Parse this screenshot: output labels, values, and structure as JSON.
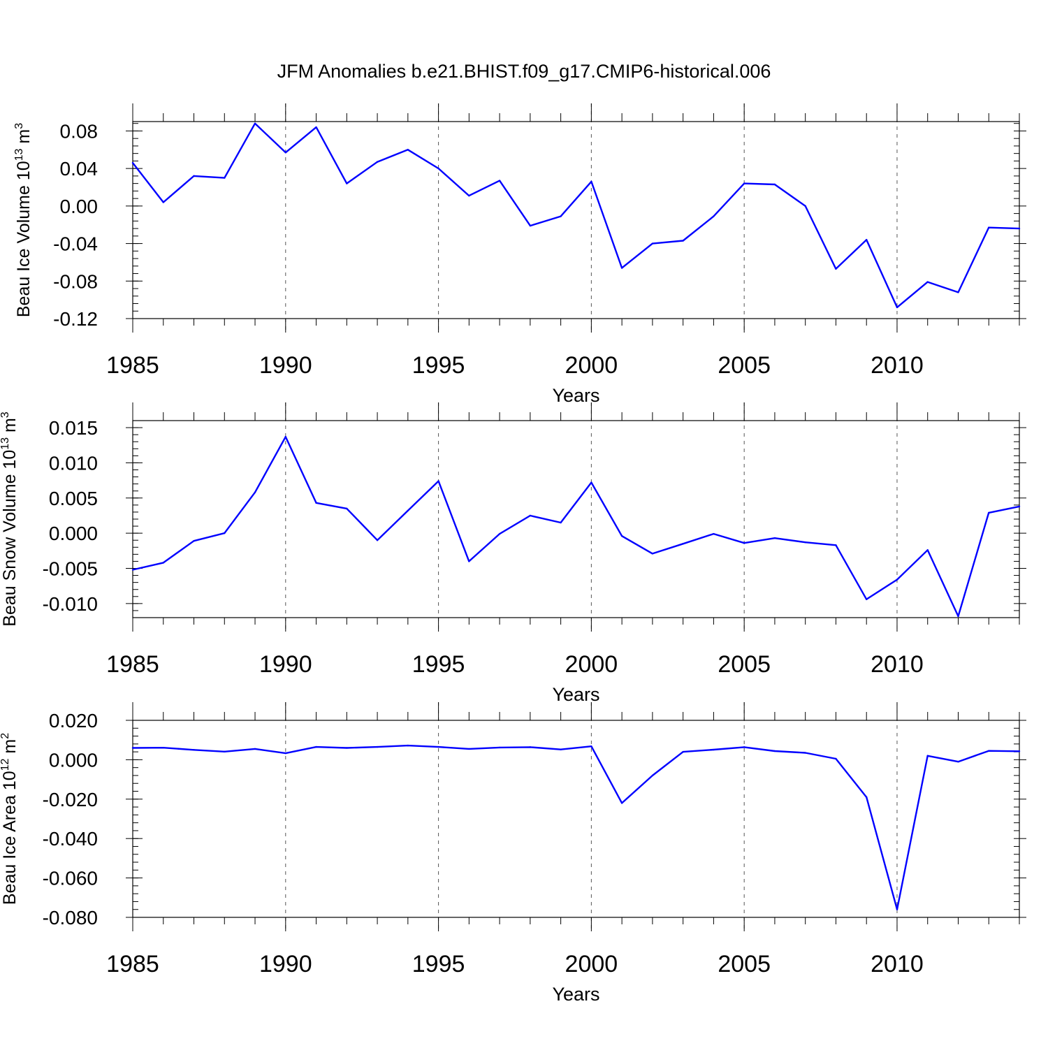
{
  "title": "JFM Anomalies b.e21.BHIST.f09_g17.CMIP6-historical.006",
  "colors": {
    "series": "#0000ff",
    "axis": "#000000",
    "grid": "#555555"
  },
  "chart_data": [
    {
      "type": "line",
      "ylabel": {
        "text": "Beau Ice Volume 10",
        "exp": "13",
        "unit": " m",
        "unit_exp": "3"
      },
      "xlabel": "Years",
      "xlim": [
        1985,
        2014
      ],
      "ylim": [
        -0.12,
        0.09
      ],
      "xticks": [
        "1985",
        "1990",
        "1995",
        "2000",
        "2005",
        "2010"
      ],
      "xtick_values": [
        1985,
        1990,
        1995,
        2000,
        2005,
        2010
      ],
      "yticks": [
        "0.08",
        "0.04",
        "0.00",
        "-0.04",
        "-0.08",
        "-0.12"
      ],
      "ytick_values": [
        0.08,
        0.04,
        0.0,
        -0.04,
        -0.08,
        -0.12
      ],
      "x": [
        1985,
        1986,
        1987,
        1988,
        1989,
        1990,
        1991,
        1992,
        1993,
        1994,
        1995,
        1996,
        1997,
        1998,
        1999,
        2000,
        2001,
        2002,
        2003,
        2004,
        2005,
        2006,
        2007,
        2008,
        2009,
        2010,
        2011,
        2012,
        2013,
        2014
      ],
      "values": [
        0.046,
        0.004,
        0.032,
        0.03,
        0.088,
        0.057,
        0.084,
        0.024,
        0.047,
        0.06,
        0.04,
        0.011,
        0.027,
        -0.021,
        -0.011,
        0.026,
        -0.066,
        -0.04,
        -0.037,
        -0.011,
        0.024,
        0.023,
        0.0,
        -0.067,
        -0.036,
        -0.108,
        -0.081,
        -0.092,
        -0.023,
        -0.024
      ]
    },
    {
      "type": "line",
      "ylabel": {
        "text": "Beau Snow Volume 10",
        "exp": "13",
        "unit": " m",
        "unit_exp": "3"
      },
      "xlabel": "Years",
      "xlim": [
        1985,
        2014
      ],
      "ylim": [
        -0.012,
        0.016
      ],
      "xticks": [
        "1985",
        "1990",
        "1995",
        "2000",
        "2005",
        "2010"
      ],
      "xtick_values": [
        1985,
        1990,
        1995,
        2000,
        2005,
        2010
      ],
      "yticks": [
        "0.015",
        "0.010",
        "0.005",
        "0.000",
        "-0.005",
        "-0.010"
      ],
      "ytick_values": [
        0.015,
        0.01,
        0.005,
        0.0,
        -0.005,
        -0.01
      ],
      "x": [
        1985,
        1986,
        1987,
        1988,
        1989,
        1990,
        1991,
        1992,
        1993,
        1994,
        1995,
        1996,
        1997,
        1998,
        1999,
        2000,
        2001,
        2002,
        2003,
        2004,
        2005,
        2006,
        2007,
        2008,
        2009,
        2010,
        2011,
        2012,
        2013,
        2014
      ],
      "values": [
        -0.0052,
        -0.0042,
        -0.0011,
        0.0,
        0.0058,
        0.0137,
        0.0043,
        0.0035,
        -0.001,
        0.0032,
        0.0074,
        -0.004,
        -0.0001,
        0.0025,
        0.0015,
        0.0072,
        -0.0004,
        -0.0029,
        -0.0015,
        -0.0001,
        -0.0014,
        -0.0007,
        -0.0013,
        -0.0017,
        -0.0094,
        -0.0066,
        -0.0024,
        -0.0118,
        0.0029,
        0.0038
      ]
    },
    {
      "type": "line",
      "ylabel": {
        "text": "Beau Ice Area 10",
        "exp": "12",
        "unit": " m",
        "unit_exp": "2"
      },
      "xlabel": "Years",
      "xlim": [
        1985,
        2014
      ],
      "ylim": [
        -0.08,
        0.02
      ],
      "xticks": [
        "1985",
        "1990",
        "1995",
        "2000",
        "2005",
        "2010"
      ],
      "xtick_values": [
        1985,
        1990,
        1995,
        2000,
        2005,
        2010
      ],
      "yticks": [
        "0.020",
        "0.000",
        "-0.020",
        "-0.040",
        "-0.060",
        "-0.080"
      ],
      "ytick_values": [
        0.02,
        0.0,
        -0.02,
        -0.04,
        -0.06,
        -0.08
      ],
      "x": [
        1985,
        1986,
        1987,
        1988,
        1989,
        1990,
        1991,
        1992,
        1993,
        1994,
        1995,
        1996,
        1997,
        1998,
        1999,
        2000,
        2001,
        2002,
        2003,
        2004,
        2005,
        2006,
        2007,
        2008,
        2009,
        2010,
        2011,
        2012,
        2013,
        2014
      ],
      "values": [
        0.006,
        0.0061,
        0.005,
        0.0041,
        0.0055,
        0.0033,
        0.0065,
        0.006,
        0.0065,
        0.0072,
        0.0065,
        0.0055,
        0.0062,
        0.0064,
        0.0052,
        0.0068,
        -0.022,
        -0.008,
        0.004,
        0.0051,
        0.0064,
        0.0044,
        0.0035,
        0.0005,
        -0.019,
        -0.076,
        0.002,
        -0.001,
        0.0045,
        0.0043
      ]
    }
  ]
}
